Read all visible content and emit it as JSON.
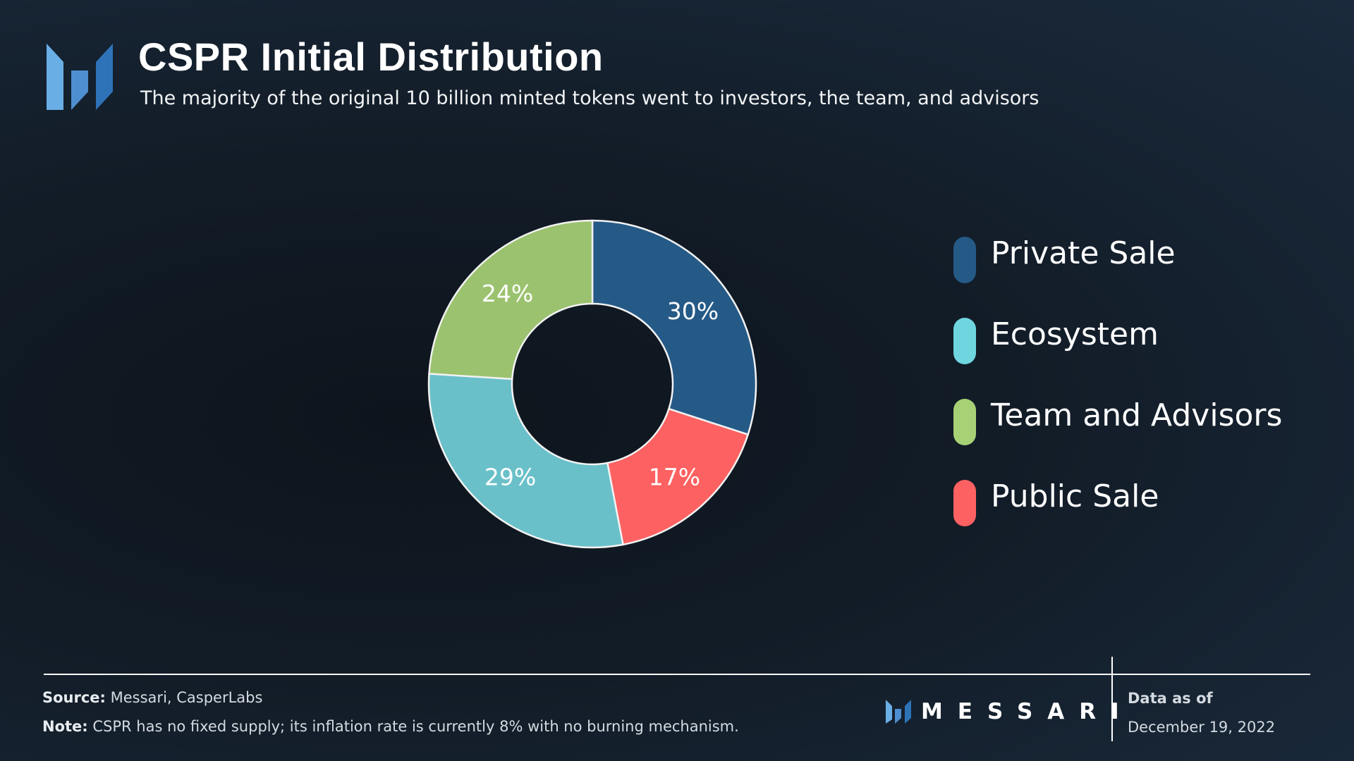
{
  "header": {
    "title": "CSPR Initial Distribution",
    "subtitle": "The majority of the original 10 billion minted tokens went to investors, the team, and advisors"
  },
  "chart_data": {
    "type": "pie",
    "style": "donut",
    "title": "CSPR Initial Distribution",
    "series": [
      {
        "name": "Private Sale",
        "value": 30,
        "label": "30%",
        "color": "#255a87"
      },
      {
        "name": "Public Sale",
        "value": 17,
        "label": "17%",
        "color": "#fd6161"
      },
      {
        "name": "Ecosystem",
        "value": 29,
        "label": "29%",
        "color": "#6ac0c9"
      },
      {
        "name": "Team and Advisors",
        "value": 24,
        "label": "24%",
        "color": "#9bc26f"
      }
    ],
    "legend": {
      "placement": "right",
      "order": [
        "Private Sale",
        "Ecosystem",
        "Team and Advisors",
        "Public Sale"
      ],
      "colors": {
        "Private Sale": "#255a87",
        "Ecosystem": "#6fd6df",
        "Team and Advisors": "#a6d175",
        "Public Sale": "#fd6161"
      }
    }
  },
  "footer": {
    "source_label": "Source:",
    "source_text": "Messari, CasperLabs",
    "note_label": "Note:",
    "note_text": "CSPR has no fixed supply; its inflation rate is currently 8% with no burning mechanism.",
    "brand": "MESSARI",
    "as_of_label": "Data as of",
    "as_of_date": "December 19, 2022"
  },
  "icons": {
    "header_logo": "messari-logo-icon",
    "footer_logo": "messari-mark-icon"
  }
}
